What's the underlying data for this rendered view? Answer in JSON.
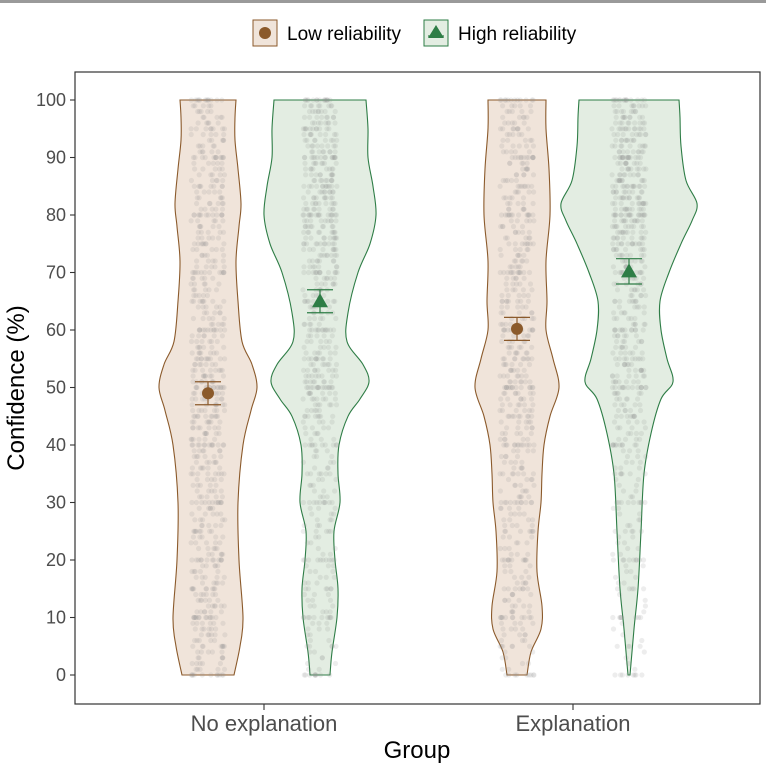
{
  "chart_data": {
    "type": "violin",
    "xlabel": "Group",
    "ylabel": "Confidence (%)",
    "ylim": [
      0,
      100
    ],
    "yticks": [
      0,
      10,
      20,
      30,
      40,
      50,
      60,
      70,
      80,
      90,
      100
    ],
    "categories": [
      "No explanation",
      "Explanation"
    ],
    "legend": {
      "placement": "top"
    },
    "grid": false,
    "series": [
      {
        "name": "Low reliability",
        "marker": "circle",
        "color": "#8b5a2b",
        "fill": "#f0e4da",
        "means": [
          49,
          60.2
        ],
        "ci": [
          [
            47,
            51
          ],
          [
            58.2,
            62.2
          ]
        ]
      },
      {
        "name": "High reliability",
        "marker": "triangle",
        "color": "#2e7d46",
        "fill": "#e3ede2",
        "means": [
          65,
          70.2
        ],
        "ci": [
          [
            63,
            67
          ],
          [
            68,
            72.4
          ]
        ]
      }
    ]
  }
}
